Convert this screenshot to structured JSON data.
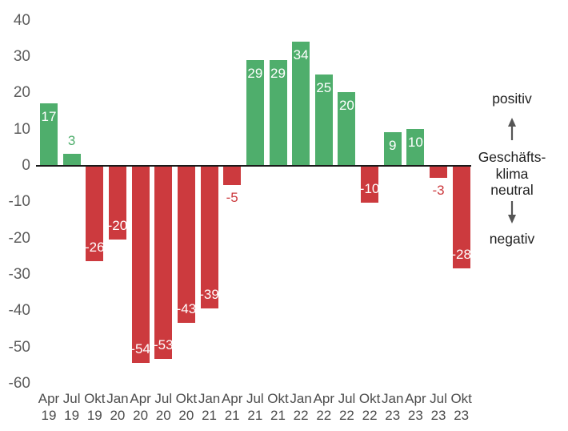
{
  "chart_data": {
    "type": "bar",
    "title": "",
    "xlabel": "",
    "ylabel": "",
    "categories": [
      "Apr 19",
      "Jul 19",
      "Okt 19",
      "Jan 20",
      "Apr 20",
      "Jul 20",
      "Okt 20",
      "Jan 21",
      "Apr 21",
      "Jul 21",
      "Okt 21",
      "Jan 22",
      "Apr 22",
      "Jul 22",
      "Okt 22",
      "Jan 23",
      "Apr 23",
      "Jul 23",
      "Okt 23"
    ],
    "values": [
      17,
      3,
      -26,
      -20,
      -54,
      -53,
      -43,
      -39,
      -5,
      29,
      29,
      34,
      25,
      20,
      -10,
      9,
      10,
      -3,
      -28
    ],
    "ylim": [
      -60,
      40
    ],
    "yticks": [
      40,
      30,
      20,
      10,
      0,
      -10,
      -20,
      -30,
      -40,
      -50,
      -60
    ],
    "grid": false,
    "legend_position": "right",
    "bar_color_positive": "#4fae6c",
    "bar_color_negative": "#cc3a3e",
    "value_label_color_inside": "#ffffff",
    "axis_line_color": "#1a1a1a",
    "tick_label_color": "#5c5c5c",
    "annotations": {
      "positive_label": "positiv",
      "neutral_lines": [
        "Geschäfts-",
        "klima",
        "neutral"
      ],
      "negative_label": "negativ",
      "arrow_color": "#555555"
    }
  }
}
